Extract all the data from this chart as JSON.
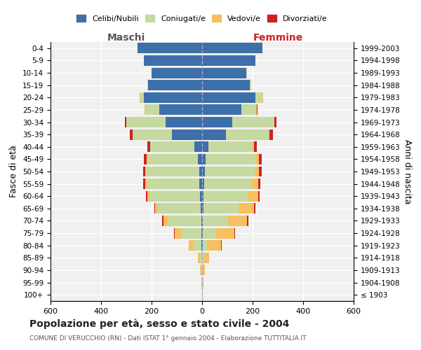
{
  "age_groups": [
    "100+",
    "95-99",
    "90-94",
    "85-89",
    "80-84",
    "75-79",
    "70-74",
    "65-69",
    "60-64",
    "55-59",
    "50-54",
    "45-49",
    "40-44",
    "35-39",
    "30-34",
    "25-29",
    "20-24",
    "15-19",
    "10-14",
    "5-9",
    "0-4"
  ],
  "birth_years": [
    "≤ 1903",
    "1904-1908",
    "1909-1913",
    "1914-1918",
    "1919-1923",
    "1924-1928",
    "1929-1933",
    "1934-1938",
    "1939-1943",
    "1944-1948",
    "1949-1953",
    "1954-1958",
    "1959-1963",
    "1964-1968",
    "1969-1973",
    "1974-1978",
    "1979-1983",
    "1984-1988",
    "1989-1993",
    "1994-1998",
    "1999-2003"
  ],
  "male_celibe": [
    0,
    0,
    1,
    1,
    2,
    3,
    4,
    5,
    8,
    10,
    12,
    18,
    30,
    120,
    145,
    170,
    230,
    215,
    200,
    230,
    255
  ],
  "male_coniugato": [
    1,
    2,
    4,
    8,
    30,
    80,
    130,
    170,
    200,
    210,
    210,
    200,
    175,
    155,
    155,
    55,
    15,
    3,
    1,
    0,
    0
  ],
  "male_vedovo": [
    0,
    1,
    3,
    8,
    20,
    25,
    20,
    12,
    8,
    5,
    3,
    2,
    1,
    0,
    0,
    2,
    1,
    0,
    0,
    0,
    0
  ],
  "male_divorziato": [
    0,
    0,
    0,
    0,
    1,
    2,
    3,
    3,
    5,
    7,
    8,
    10,
    10,
    10,
    5,
    2,
    1,
    0,
    0,
    0,
    0
  ],
  "female_celibe": [
    0,
    0,
    1,
    1,
    2,
    3,
    4,
    5,
    6,
    8,
    10,
    15,
    25,
    95,
    120,
    155,
    210,
    190,
    175,
    210,
    240
  ],
  "female_coniugato": [
    1,
    2,
    3,
    6,
    18,
    50,
    100,
    140,
    175,
    190,
    200,
    200,
    175,
    170,
    165,
    60,
    30,
    5,
    2,
    1,
    0
  ],
  "female_vedovo": [
    1,
    3,
    8,
    20,
    55,
    75,
    75,
    60,
    40,
    25,
    15,
    10,
    5,
    3,
    2,
    2,
    1,
    0,
    0,
    0,
    0
  ],
  "female_divorziato": [
    0,
    0,
    0,
    1,
    2,
    3,
    5,
    5,
    8,
    8,
    10,
    12,
    12,
    12,
    8,
    3,
    2,
    0,
    0,
    0,
    0
  ],
  "colors": {
    "celibe": "#3d6fa8",
    "coniugato": "#c5d9a0",
    "vedovo": "#f5c060",
    "divorziato": "#cc2222"
  },
  "title": "Popolazione per età, sesso e stato civile - 2004",
  "subtitle": "COMUNE DI VERUCCHIO (RN) - Dati ISTAT 1° gennaio 2004 - Elaborazione TUTTITALIA.IT",
  "xlabel_left": "Maschi",
  "xlabel_right": "Femmine",
  "ylabel_left": "Fasce di età",
  "ylabel_right": "Anni di nascita",
  "xlim": 600,
  "background_color": "#ffffff",
  "grid_color": "#cccccc"
}
